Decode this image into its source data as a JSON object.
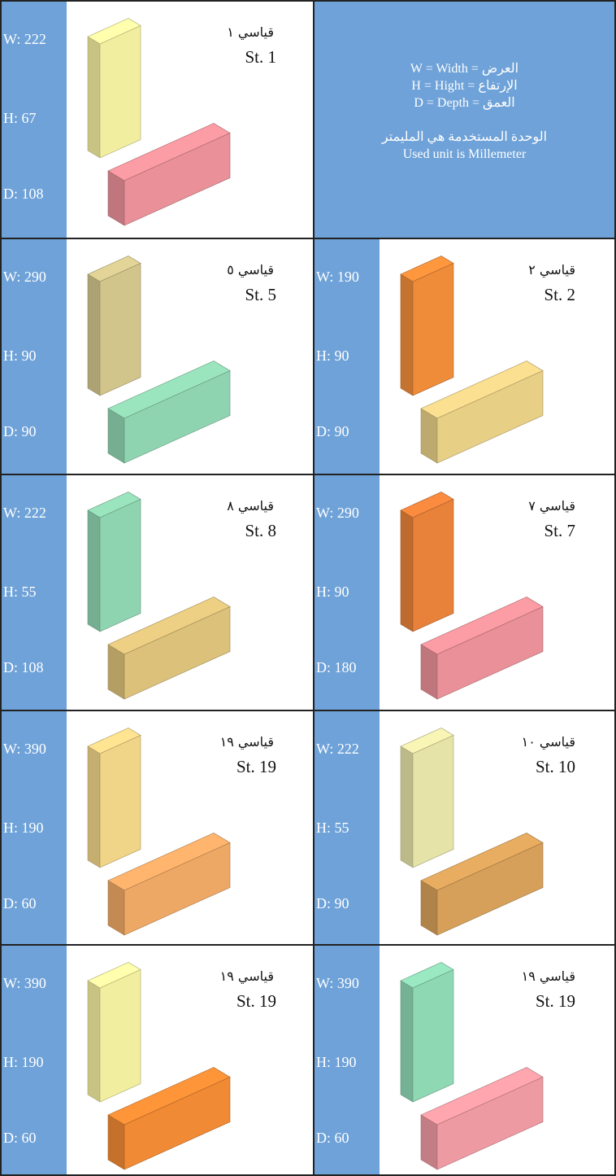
{
  "legend": {
    "lines": [
      "W = Width = العرض",
      "H = Hight = الإرتفاع",
      "D = Depth = العمق"
    ],
    "unit_ar": "الوحدة المستخدمة هي المليمتر",
    "unit_en": "Used unit is Millemeter"
  },
  "cards": [
    {
      "ar": "قياسي ١",
      "en": "St. 1",
      "w": "W: 222",
      "h": "H: 67",
      "d": "D: 108",
      "colors": [
        "#f2eea0",
        "#e99098"
      ]
    },
    {
      "ar": "قياسي ٥",
      "en": "St. 5",
      "w": "W: 290",
      "h": "H: 90",
      "d": "D: 90",
      "colors": [
        "#d2c58c",
        "#8fd4b0"
      ]
    },
    {
      "ar": "قياسي ٢",
      "en": "St. 2",
      "w": "W: 190",
      "h": "H: 90",
      "d": "D: 90",
      "colors": [
        "#ef8c3a",
        "#e8cf86"
      ]
    },
    {
      "ar": "قياسي ٨",
      "en": "St. 8",
      "w": "W: 222",
      "h": "H: 55",
      "d": "D: 108",
      "colors": [
        "#8fd4b0",
        "#dcc17a"
      ]
    },
    {
      "ar": "قياسي ٧",
      "en": "St. 7",
      "w": "W: 290",
      "h": "H: 90",
      "d": "D: 180",
      "colors": [
        "#e8823a",
        "#e99098"
      ]
    },
    {
      "ar": "قياسي ١٩",
      "en": "St. 19",
      "w": "W: 390",
      "h": "H: 190",
      "d": "D: 60",
      "colors": [
        "#f0d487",
        "#eea866"
      ]
    },
    {
      "ar": "قياسي ١٠",
      "en": "St. 10",
      "w": "W: 222",
      "h": "H: 55",
      "d": "D: 90",
      "colors": [
        "#e6e3a8",
        "#d7a05a"
      ]
    },
    {
      "ar": "قياسي ١٩",
      "en": "St. 19",
      "w": "W: 390",
      "h": "H: 190",
      "d": "D: 60",
      "colors": [
        "#f2eea0",
        "#f08a35"
      ]
    },
    {
      "ar": "قياسي ١٩",
      "en": "St. 19",
      "w": "W: 390",
      "h": "H: 190",
      "d": "D: 60",
      "colors": [
        "#8fd8b4",
        "#ee9aa2"
      ]
    }
  ]
}
